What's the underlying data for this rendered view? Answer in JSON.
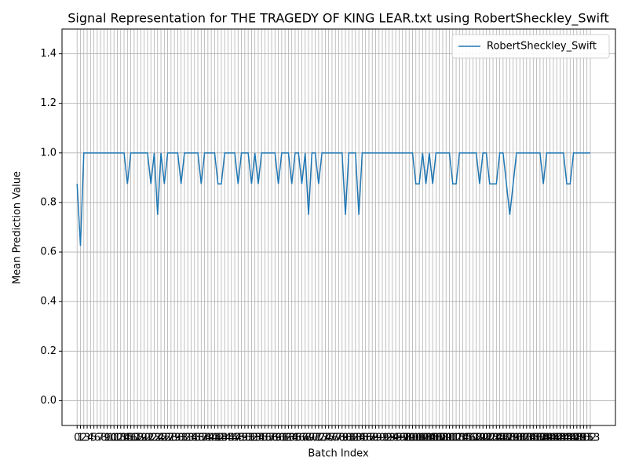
{
  "chart_data": {
    "type": "line",
    "title": "Signal Representation for THE TRAGEDY OF KING LEAR.txt using RobertSheckley_Swift",
    "xlabel": "Batch Index",
    "ylabel": "Mean Prediction Value",
    "x": [
      0,
      1,
      2,
      3,
      4,
      5,
      6,
      7,
      8,
      9,
      10,
      11,
      12,
      13,
      14,
      15,
      16,
      17,
      18,
      19,
      20,
      21,
      22,
      23,
      24,
      25,
      26,
      27,
      28,
      29,
      30,
      31,
      32,
      33,
      34,
      35,
      36,
      37,
      38,
      39,
      40,
      41,
      42,
      43,
      44,
      45,
      46,
      47,
      48,
      49,
      50,
      51,
      52,
      53,
      54,
      55,
      56,
      57,
      58,
      59,
      60,
      61,
      62,
      63,
      64,
      65,
      66,
      67,
      68,
      69,
      70,
      71,
      72,
      73,
      74,
      75,
      76,
      77,
      78,
      79,
      80,
      81,
      82,
      83,
      84,
      85,
      86,
      87,
      88,
      89,
      90,
      91,
      92,
      93,
      94,
      95,
      96,
      97,
      98,
      99,
      100,
      101,
      102,
      103,
      104,
      105,
      106,
      107,
      108,
      109,
      110,
      111,
      112,
      113,
      114,
      115,
      116,
      117,
      118,
      119,
      120,
      121,
      122,
      123,
      124,
      125,
      126,
      127,
      128,
      129,
      130,
      131,
      132,
      133,
      134,
      135,
      136,
      137,
      138,
      139,
      140,
      141,
      142,
      143,
      144,
      145,
      146,
      147,
      148,
      149,
      150,
      151,
      152,
      153
    ],
    "series": [
      {
        "name": "RobertSheckley_Swift",
        "color": "#1f77b4",
        "values": [
          0.875,
          0.625,
          1,
          1,
          1,
          1,
          1,
          1,
          1,
          1,
          1,
          1,
          1,
          1,
          1,
          0.875,
          1,
          1,
          1,
          1,
          1,
          1,
          0.875,
          1,
          0.75,
          1,
          0.875,
          1,
          1,
          1,
          1,
          0.875,
          1,
          1,
          1,
          1,
          1,
          0.875,
          1,
          1,
          1,
          1,
          0.875,
          0.875,
          1,
          1,
          1,
          1,
          0.875,
          1,
          1,
          1,
          0.875,
          1,
          0.875,
          1,
          1,
          1,
          1,
          1,
          0.875,
          1,
          1,
          1,
          0.875,
          1,
          1,
          0.875,
          1,
          0.75,
          1,
          1,
          0.875,
          1,
          1,
          1,
          1,
          1,
          1,
          1,
          0.75,
          1,
          1,
          1,
          0.75,
          1,
          1,
          1,
          1,
          1,
          1,
          1,
          1,
          1,
          1,
          1,
          1,
          1,
          1,
          1,
          1,
          0.875,
          0.875,
          1,
          0.875,
          1,
          0.875,
          1,
          1,
          1,
          1,
          1,
          0.875,
          0.875,
          1,
          1,
          1,
          1,
          1,
          1,
          0.875,
          1,
          1,
          0.875,
          0.875,
          0.875,
          1,
          1,
          0.875,
          0.75,
          0.875,
          1,
          1,
          1,
          1,
          1,
          1,
          1,
          1,
          0.875,
          1,
          1,
          1,
          1,
          1,
          1,
          0.875,
          0.875,
          1,
          1,
          1,
          1,
          1,
          1
        ]
      }
    ],
    "xlim": [
      -4.5,
      160.5
    ],
    "xticks": [
      0,
      1,
      2,
      3,
      4,
      5,
      6,
      7,
      8,
      9,
      10,
      11,
      12,
      13,
      14,
      15,
      16,
      17,
      18,
      19,
      20,
      21,
      22,
      23,
      24,
      25,
      26,
      27,
      28,
      29,
      30,
      31,
      32,
      33,
      34,
      35,
      36,
      37,
      38,
      39,
      40,
      41,
      42,
      43,
      44,
      45,
      46,
      47,
      48,
      49,
      50,
      51,
      52,
      53,
      54,
      55,
      56,
      57,
      58,
      59,
      60,
      61,
      62,
      63,
      64,
      65,
      66,
      67,
      68,
      69,
      70,
      71,
      72,
      73,
      74,
      75,
      76,
      77,
      78,
      79,
      80,
      81,
      82,
      83,
      84,
      85,
      86,
      87,
      88,
      89,
      90,
      91,
      92,
      93,
      94,
      95,
      96,
      97,
      98,
      99,
      100,
      101,
      102,
      103,
      104,
      105,
      106,
      107,
      108,
      109,
      110,
      111,
      112,
      113,
      114,
      115,
      116,
      117,
      118,
      119,
      120,
      121,
      122,
      123,
      124,
      125,
      126,
      127,
      128,
      129,
      130,
      131,
      132,
      133,
      134,
      135,
      136,
      137,
      138,
      139,
      140,
      141,
      142,
      143,
      144,
      145,
      146,
      147,
      148,
      149,
      150,
      151,
      152,
      153
    ],
    "ylim": [
      -0.1,
      1.5
    ],
    "yticks": [
      {
        "value": 0,
        "label": "0.0"
      },
      {
        "value": 0.2,
        "label": "0.2"
      },
      {
        "value": 0.4,
        "label": "0.4"
      },
      {
        "value": 0.6,
        "label": "0.6"
      },
      {
        "value": 0.8,
        "label": "0.8"
      },
      {
        "value": 1,
        "label": "1.0"
      },
      {
        "value": 1.2,
        "label": "1.2"
      },
      {
        "value": 1.4,
        "label": "1.4"
      }
    ],
    "grid": true,
    "legend": "upper right"
  }
}
